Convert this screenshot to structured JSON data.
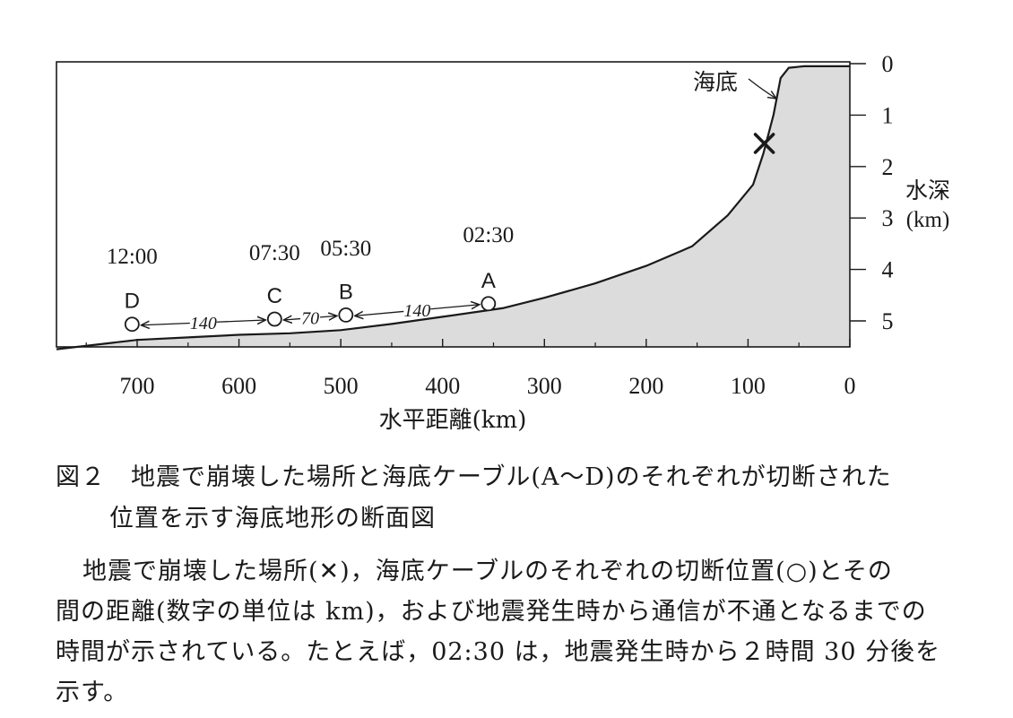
{
  "diagram": {
    "x_axis": {
      "ticks": [
        "700",
        "600",
        "500",
        "400",
        "300",
        "200",
        "100",
        "0"
      ],
      "tick_values": [
        700,
        600,
        500,
        400,
        300,
        200,
        100,
        0
      ],
      "label": "水平距離(km)",
      "range": [
        780,
        0
      ]
    },
    "y_axis": {
      "ticks": [
        "0",
        "1",
        "2",
        "3",
        "4",
        "5"
      ],
      "tick_values": [
        0,
        1,
        2,
        3,
        4,
        5
      ],
      "label_line1": "水深",
      "label_line2": "(km)",
      "range": [
        0,
        5.6
      ]
    },
    "seafloor_label": "海底",
    "seafloor_profile": [
      [
        780,
        5.55
      ],
      [
        700,
        5.37
      ],
      [
        650,
        5.32
      ],
      [
        600,
        5.27
      ],
      [
        550,
        5.24
      ],
      [
        500,
        5.18
      ],
      [
        450,
        5.06
      ],
      [
        400,
        4.92
      ],
      [
        340,
        4.75
      ],
      [
        300,
        4.55
      ],
      [
        250,
        4.27
      ],
      [
        200,
        3.93
      ],
      [
        155,
        3.55
      ],
      [
        120,
        2.95
      ],
      [
        95,
        2.35
      ],
      [
        85,
        1.75
      ],
      [
        75,
        1.0
      ],
      [
        68,
        0.28
      ],
      [
        60,
        0.08
      ],
      [
        45,
        0.05
      ],
      [
        0,
        0.05
      ]
    ],
    "collapse_point": {
      "x": 84,
      "depth": 1.55,
      "symbol": "×"
    },
    "cable_points": [
      {
        "label": "A",
        "x": 355,
        "depth": 4.7,
        "time": "02:30"
      },
      {
        "label": "B",
        "x": 495,
        "depth": 4.92,
        "time": "05:30"
      },
      {
        "label": "C",
        "x": 565,
        "depth": 5.0,
        "time": "07:30"
      },
      {
        "label": "D",
        "x": 705,
        "depth": 5.1,
        "time": "12:00"
      }
    ],
    "distances": [
      {
        "from": "A",
        "to": "B",
        "value": "140"
      },
      {
        "from": "B",
        "to": "C",
        "value": "70"
      },
      {
        "from": "C",
        "to": "D",
        "value": "140"
      }
    ],
    "colors": {
      "seafloor_fill": "#dcdcdc",
      "line": "#1a1a1a"
    }
  },
  "caption": {
    "line1": "図２　地震で崩壊した場所と海底ケーブル(A～D)のそれぞれが切断された",
    "line2": "位置を示す海底地形の断面図"
  },
  "paragraph": {
    "line1": "地震で崩壊した場所(✕)，海底ケーブルのそれぞれの切断位置(○)とその",
    "line2": "間の距離(数字の単位は km)，および地震発生時から通信が不通となるまでの",
    "line3": "時間が示されている。たとえば，02:30 は，地震発生時から２時間 30 分後を",
    "line4": "示す。"
  }
}
